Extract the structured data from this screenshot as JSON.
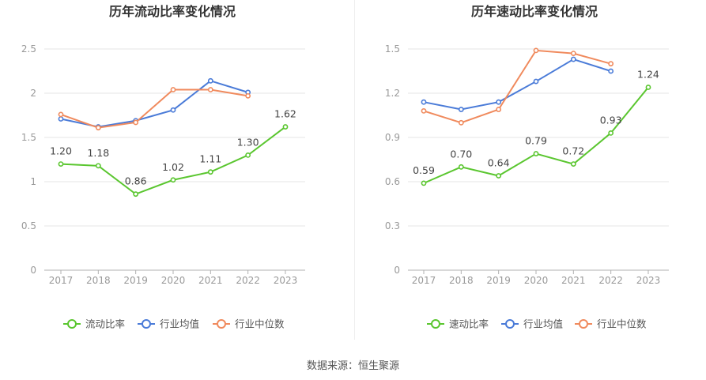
{
  "colors": {
    "current": "#5ac62f",
    "avg": "#4a7bd8",
    "median": "#f08a5d",
    "axis_text": "#999999",
    "grid": "#e6e6e6",
    "title": "#333333"
  },
  "source_text": "数据来源：恒生聚源",
  "chart_data": [
    {
      "type": "line",
      "title": "历年流动比率变化情况",
      "categories": [
        "2017",
        "2018",
        "2019",
        "2020",
        "2021",
        "2022",
        "2023"
      ],
      "y_ticks": [
        "0",
        "0.5",
        "1",
        "1.5",
        "2",
        "2.5"
      ],
      "ylim": [
        0,
        2.5
      ],
      "grid": true,
      "legend_position": "bottom",
      "series": [
        {
          "name": "流动比率",
          "key": "current",
          "values": [
            1.2,
            1.18,
            0.86,
            1.02,
            1.11,
            1.3,
            1.62
          ],
          "labels": [
            "1.20",
            "1.18",
            "0.86",
            "1.02",
            "1.11",
            "1.30",
            "1.62"
          ]
        },
        {
          "name": "行业均值",
          "key": "avg",
          "values": [
            1.71,
            1.62,
            1.69,
            1.81,
            2.14,
            2.01,
            null
          ]
        },
        {
          "name": "行业中位数",
          "key": "median",
          "values": [
            1.76,
            1.61,
            1.67,
            2.04,
            2.04,
            1.97,
            null
          ]
        }
      ]
    },
    {
      "type": "line",
      "title": "历年速动比率变化情况",
      "categories": [
        "2017",
        "2018",
        "2019",
        "2020",
        "2021",
        "2022",
        "2023"
      ],
      "y_ticks": [
        "0",
        "0.3",
        "0.6",
        "0.9",
        "1.2",
        "1.5"
      ],
      "ylim": [
        0,
        1.5
      ],
      "grid": true,
      "legend_position": "bottom",
      "series": [
        {
          "name": "速动比率",
          "key": "current",
          "values": [
            0.59,
            0.7,
            0.64,
            0.79,
            0.72,
            0.93,
            1.24
          ],
          "labels": [
            "0.59",
            "0.70",
            "0.64",
            "0.79",
            "0.72",
            "0.93",
            "1.24"
          ]
        },
        {
          "name": "行业均值",
          "key": "avg",
          "values": [
            1.14,
            1.09,
            1.14,
            1.28,
            1.43,
            1.35,
            null
          ]
        },
        {
          "name": "行业中位数",
          "key": "median",
          "values": [
            1.08,
            1.0,
            1.09,
            1.49,
            1.47,
            1.4,
            null
          ]
        }
      ]
    }
  ]
}
